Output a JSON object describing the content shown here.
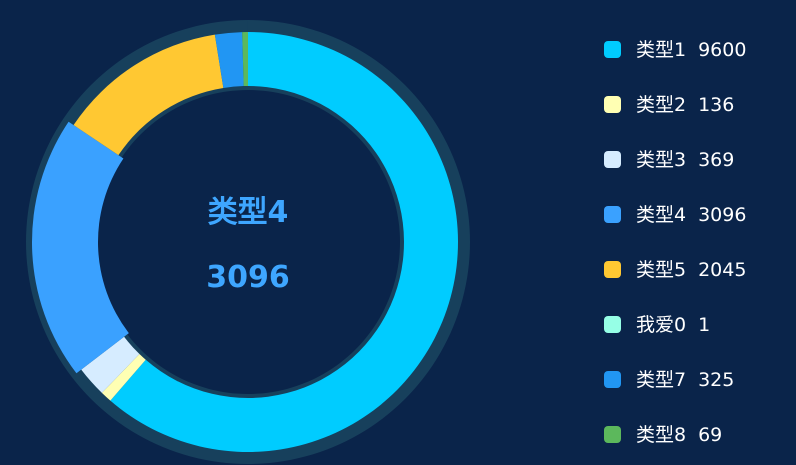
{
  "chart_data": {
    "type": "pie",
    "series": [
      {
        "name": "类型1",
        "value": 9600,
        "color": "#00ccff"
      },
      {
        "name": "类型2",
        "value": 136,
        "color": "#ffffb3"
      },
      {
        "name": "类型3",
        "value": 369,
        "color": "#d6ecff"
      },
      {
        "name": "类型4",
        "value": 3096,
        "color": "#3aa1ff"
      },
      {
        "name": "类型5",
        "value": 2045,
        "color": "#ffc832"
      },
      {
        "name": "我爱0",
        "value": 1,
        "color": "#96ffe6"
      },
      {
        "name": "类型7",
        "value": 325,
        "color": "#2196f3"
      },
      {
        "name": "类型8",
        "value": 69,
        "color": "#5cb85c"
      }
    ],
    "highlight": {
      "name": "类型4",
      "value": "3096"
    },
    "legend_position": "right"
  },
  "colors": {
    "background": "#0a244a",
    "track": "#1c4a63",
    "center_text": "#3ea6ff"
  }
}
